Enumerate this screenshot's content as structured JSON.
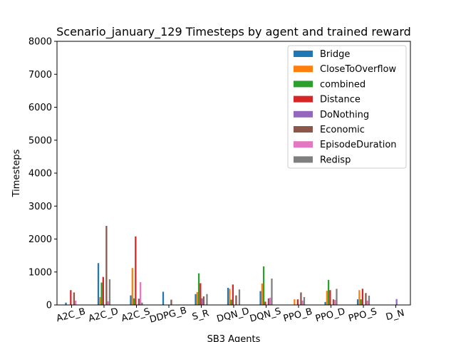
{
  "chart_data": {
    "type": "bar",
    "title": "Scenario_january_129 Timesteps by agent and trained reward",
    "xlabel": "SB3 Agents",
    "ylabel": "Timesteps",
    "ylim": [
      0,
      8000
    ],
    "yticks": [
      0,
      1000,
      2000,
      3000,
      4000,
      5000,
      6000,
      7000,
      8000
    ],
    "grid": false,
    "legend_position": "top-right",
    "categories": [
      "A2C_B",
      "A2C_D",
      "A2C_S",
      "DDPG_B",
      "S_R",
      "DQN_D",
      "DQN_S",
      "PPO_B",
      "PPO_D",
      "PPO_S",
      "D_N"
    ],
    "series": [
      {
        "name": "Bridge",
        "color": "#1f77b4",
        "values": [
          70,
          1270,
          290,
          400,
          330,
          520,
          420,
          0,
          90,
          170,
          0
        ]
      },
      {
        "name": "CloseToOverflow",
        "color": "#ff7f0e",
        "values": [
          0,
          240,
          1120,
          0,
          390,
          490,
          650,
          170,
          430,
          450,
          0
        ]
      },
      {
        "name": "combined",
        "color": "#2ca02c",
        "values": [
          0,
          680,
          200,
          0,
          960,
          160,
          1170,
          0,
          760,
          170,
          0
        ]
      },
      {
        "name": "Distance",
        "color": "#d62728",
        "values": [
          450,
          850,
          2080,
          0,
          660,
          620,
          100,
          170,
          450,
          490,
          0
        ]
      },
      {
        "name": "DoNothing",
        "color": "#9467bd",
        "values": [
          0,
          0,
          0,
          0,
          200,
          0,
          0,
          0,
          0,
          0,
          180
        ]
      },
      {
        "name": "Economic",
        "color": "#8c564b",
        "values": [
          380,
          2400,
          190,
          160,
          260,
          290,
          200,
          380,
          170,
          360,
          0
        ]
      },
      {
        "name": "EpisodeDuration",
        "color": "#e377c2",
        "values": [
          130,
          110,
          690,
          0,
          0,
          0,
          220,
          130,
          150,
          130,
          0
        ]
      },
      {
        "name": "Redisp",
        "color": "#7f7f7f",
        "values": [
          0,
          780,
          70,
          0,
          330,
          470,
          800,
          240,
          490,
          280,
          0
        ]
      }
    ]
  }
}
